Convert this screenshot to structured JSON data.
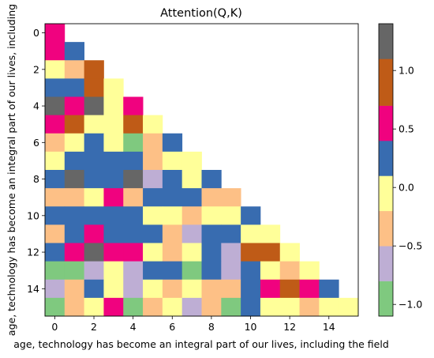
{
  "chart_data": {
    "type": "heatmap",
    "title": "Attention(Q,K)",
    "xlabel": "age, technology has become an integral part of our lives, including the field",
    "ylabel": "age, technology has become an integral part of our lives, including",
    "x_ticks": [
      0,
      2,
      4,
      6,
      8,
      10,
      12,
      14
    ],
    "y_ticks": [
      0,
      2,
      4,
      6,
      8,
      10,
      12,
      14
    ],
    "n_rows": 16,
    "n_cols": 16,
    "mask": "upper-triangle",
    "colorbar": {
      "ticks": [
        -1.0,
        -0.5,
        0.0,
        0.5,
        1.0
      ],
      "tick_labels": [
        "−1.0",
        "−0.5",
        "0.0",
        "0.5",
        "1.0"
      ],
      "vmin": -1.1,
      "vmax": 1.4,
      "levels": [
        {
          "from": -1.1,
          "to": -0.8,
          "color": "#7fc97f"
        },
        {
          "from": -0.8,
          "to": -0.5,
          "color": "#beaed4"
        },
        {
          "from": -0.5,
          "to": -0.2,
          "color": "#fdc086"
        },
        {
          "from": -0.2,
          "to": 0.1,
          "color": "#ffff99"
        },
        {
          "from": 0.1,
          "to": 0.4,
          "color": "#386cb0"
        },
        {
          "from": 0.4,
          "to": 0.7,
          "color": "#f0027f"
        },
        {
          "from": 0.7,
          "to": 1.1,
          "color": "#bf5b17"
        },
        {
          "from": 1.1,
          "to": 1.4,
          "color": "#666666"
        }
      ]
    },
    "values": [
      [
        0.55
      ],
      [
        0.55,
        0.25
      ],
      [
        -0.05,
        -0.35,
        0.9
      ],
      [
        0.25,
        0.25,
        0.9,
        -0.05
      ],
      [
        1.25,
        0.55,
        1.25,
        -0.05,
        0.55
      ],
      [
        0.55,
        0.9,
        -0.05,
        -0.05,
        0.9,
        -0.05
      ],
      [
        -0.35,
        -0.05,
        0.25,
        -0.05,
        -0.95,
        -0.35,
        0.25
      ],
      [
        -0.05,
        0.25,
        0.25,
        0.25,
        0.25,
        -0.35,
        -0.05,
        -0.05
      ],
      [
        0.25,
        1.25,
        0.25,
        0.25,
        1.25,
        -0.65,
        0.25,
        -0.05,
        0.25
      ],
      [
        -0.35,
        -0.35,
        -0.05,
        0.55,
        -0.35,
        0.25,
        0.25,
        0.25,
        -0.35,
        -0.35
      ],
      [
        0.25,
        0.25,
        0.25,
        0.25,
        0.25,
        -0.05,
        -0.05,
        -0.35,
        -0.05,
        -0.05,
        0.25
      ],
      [
        -0.35,
        0.25,
        0.55,
        0.25,
        0.25,
        0.25,
        -0.35,
        -0.65,
        0.25,
        0.25,
        -0.05,
        -0.05
      ],
      [
        0.25,
        0.55,
        1.25,
        0.55,
        0.55,
        -0.05,
        -0.35,
        -0.05,
        0.25,
        -0.65,
        0.9,
        0.9,
        -0.05
      ],
      [
        -0.95,
        -0.95,
        -0.65,
        -0.05,
        -0.65,
        0.25,
        0.25,
        -0.95,
        0.25,
        -0.65,
        0.25,
        -0.05,
        -0.35,
        -0.05
      ],
      [
        -0.65,
        -0.35,
        0.25,
        -0.05,
        -0.65,
        -0.05,
        -0.35,
        -0.05,
        -0.35,
        -0.35,
        0.25,
        0.55,
        0.9,
        0.55,
        0.25
      ],
      [
        -0.95,
        -0.35,
        -0.05,
        0.55,
        -0.95,
        -0.35,
        -0.05,
        -0.65,
        -0.35,
        -0.95,
        0.25,
        -0.05,
        -0.05,
        -0.35,
        -0.05,
        -0.05
      ]
    ]
  }
}
